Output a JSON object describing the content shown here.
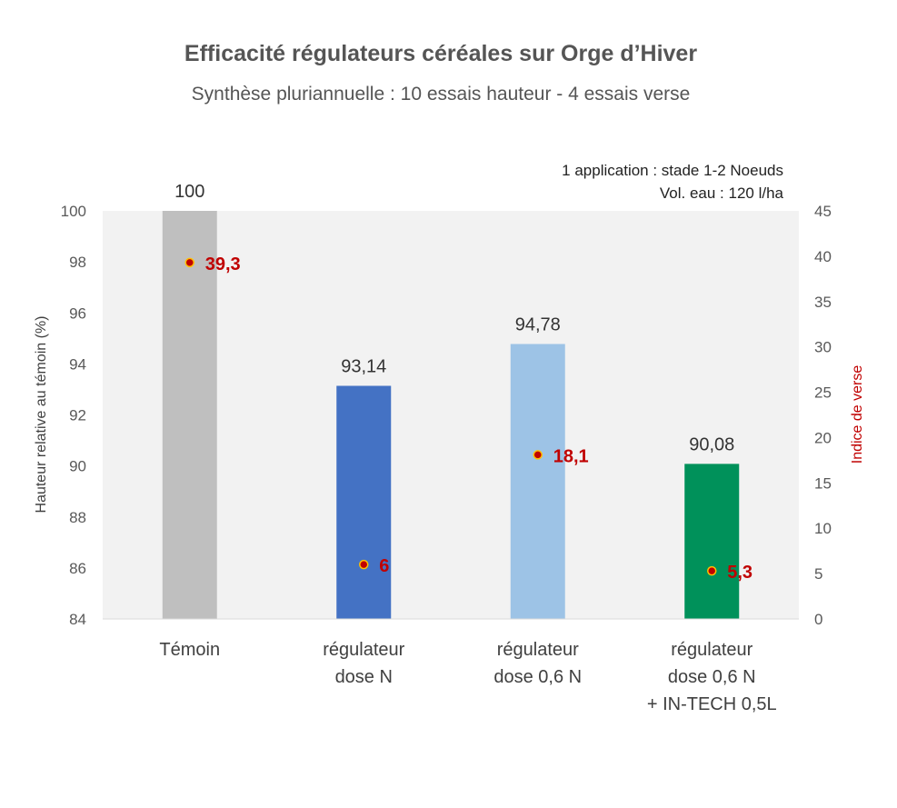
{
  "chart_data": {
    "type": "bar",
    "title": "Efficacité régulateurs céréales sur Orge d’Hiver",
    "subtitle": "Synthèse pluriannuelle : 10 essais hauteur - 4 essais verse",
    "annotation": [
      "1 application : stade  1-2 Noeuds",
      "Vol. eau : 120 l/ha"
    ],
    "ylabel": "Hauteur relative au témoin (%)",
    "y2label": "Indice de verse",
    "ylim": [
      84,
      100
    ],
    "y_ticks": [
      "84",
      "86",
      "88",
      "90",
      "92",
      "94",
      "96",
      "98",
      "100"
    ],
    "y2lim": [
      0,
      45
    ],
    "y2_ticks": [
      "0",
      "5",
      "10",
      "15",
      "20",
      "25",
      "30",
      "35",
      "40",
      "45"
    ],
    "categories": [
      [
        "Témoin"
      ],
      [
        "régulateur",
        "dose N"
      ],
      [
        "régulateur",
        "dose  0,6 N"
      ],
      [
        "régulateur",
        "dose  0,6 N",
        "+ IN-TECH 0,5L"
      ]
    ],
    "bar_values": [
      100,
      93.14,
      94.78,
      90.08
    ],
    "bar_labels": [
      "100",
      "93,14",
      "94,78",
      "90,08"
    ],
    "bar_colors": [
      "#bfbfbf",
      "#4472c4",
      "#9dc3e6",
      "#00915a"
    ],
    "verse_values": [
      39.3,
      6,
      18.1,
      5.3
    ],
    "verse_labels": [
      "39,3",
      "6",
      "18,1",
      "5,3"
    ],
    "verse_color": "#c00000",
    "plot_background": "#f2f2f2",
    "grid": false
  }
}
